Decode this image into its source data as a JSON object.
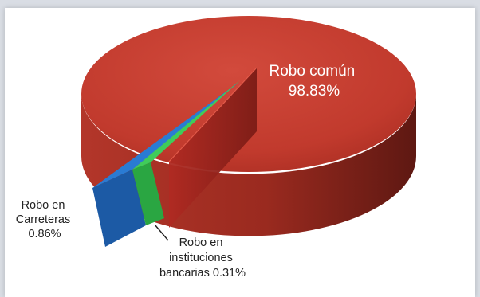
{
  "chart_data": {
    "type": "pie",
    "style": "3d-exploded",
    "slices": [
      {
        "label_lines": [
          "Robo común",
          "98.83%"
        ],
        "value": 98.83,
        "color": "#c0392b"
      },
      {
        "label_lines": [
          "Robo en",
          "Carreteras",
          "0.86%"
        ],
        "value": 0.86,
        "color": "#1f6bc4"
      },
      {
        "label_lines": [
          "Robo en",
          "instituciones",
          "bancarias 0.31%"
        ],
        "value": 0.31,
        "color": "#35c152"
      }
    ]
  }
}
